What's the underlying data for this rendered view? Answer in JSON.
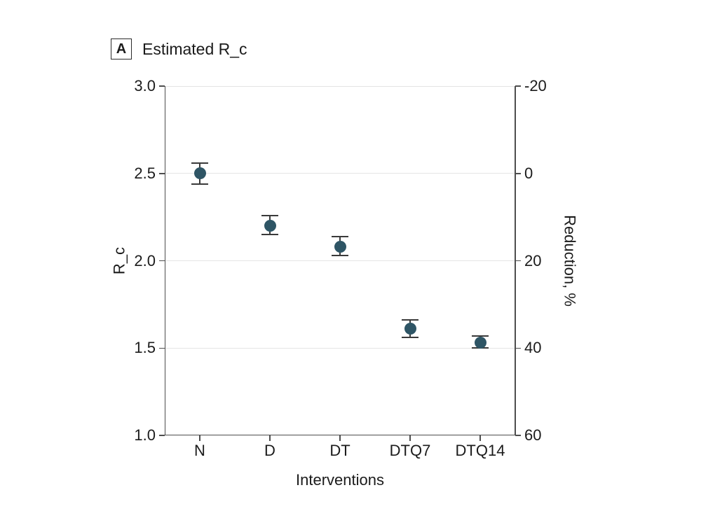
{
  "figure": {
    "panel_label": "A",
    "title": "Estimated R_c"
  },
  "chart_data": {
    "type": "scatter",
    "panel_label": "A",
    "title": "Estimated R_c",
    "xlabel": "Interventions",
    "ylabel_left": "R_c",
    "ylabel_right": "Reduction, %",
    "categories": [
      "N",
      "D",
      "DT",
      "DTQ7",
      "DTQ14"
    ],
    "series": [
      {
        "name": "Estimated R_c",
        "values": [
          2.5,
          2.2,
          2.08,
          1.61,
          1.53
        ],
        "ci_low": [
          2.44,
          2.15,
          2.03,
          1.56,
          1.5
        ],
        "ci_high": [
          2.56,
          2.26,
          2.14,
          1.66,
          1.57
        ]
      }
    ],
    "y_left": {
      "min": 1.0,
      "max": 3.0,
      "ticks": [
        3.0,
        2.5,
        2.0,
        1.5,
        1.0
      ]
    },
    "y_right": {
      "ticks": [
        "-20",
        "0",
        "20",
        "40",
        "60"
      ]
    },
    "grid": true,
    "legend": false,
    "marker_shape": "circle"
  },
  "colors": {
    "marker_fill": "#2e5565",
    "error_bar": "#3a3a3a",
    "gridline": "#e4e4e4",
    "axis_spine": "#4d4d4d",
    "text": "#1b1b1b",
    "background": "#ffffff"
  }
}
